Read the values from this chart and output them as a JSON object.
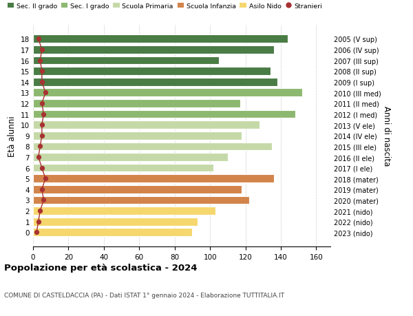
{
  "ages": [
    0,
    1,
    2,
    3,
    4,
    5,
    6,
    7,
    8,
    9,
    10,
    11,
    12,
    13,
    14,
    15,
    16,
    17,
    18
  ],
  "values": [
    90,
    93,
    103,
    122,
    118,
    136,
    102,
    110,
    135,
    118,
    128,
    148,
    117,
    152,
    138,
    134,
    105,
    136,
    144
  ],
  "stranieri": [
    2,
    3,
    4,
    6,
    5,
    7,
    5,
    3,
    4,
    5,
    5,
    6,
    5,
    7,
    5,
    5,
    4,
    5,
    3
  ],
  "right_labels": [
    "2023 (nido)",
    "2022 (nido)",
    "2021 (nido)",
    "2020 (mater)",
    "2019 (mater)",
    "2018 (mater)",
    "2017 (I ele)",
    "2016 (II ele)",
    "2015 (III ele)",
    "2014 (IV ele)",
    "2013 (V ele)",
    "2012 (I med)",
    "2011 (II med)",
    "2010 (III med)",
    "2009 (I sup)",
    "2008 (II sup)",
    "2007 (III sup)",
    "2006 (IV sup)",
    "2005 (V sup)"
  ],
  "bar_colors": [
    "#f5d76e",
    "#f5d76e",
    "#f5d76e",
    "#d2844a",
    "#d2844a",
    "#d2844a",
    "#c5d9a8",
    "#c5d9a8",
    "#c5d9a8",
    "#c5d9a8",
    "#c5d9a8",
    "#8db870",
    "#8db870",
    "#8db870",
    "#4a7c45",
    "#4a7c45",
    "#4a7c45",
    "#4a7c45",
    "#4a7c45"
  ],
  "legend_labels": [
    "Sec. II grado",
    "Sec. I grado",
    "Scuola Primaria",
    "Scuola Infanzia",
    "Asilo Nido",
    "Stranieri"
  ],
  "legend_colors": [
    "#4a7c45",
    "#8db870",
    "#c5d9a8",
    "#d2844a",
    "#f5d76e",
    "#a83232"
  ],
  "stranieri_color": "#a83232",
  "title": "Popolazione per età scolastica - 2024",
  "subtitle": "COMUNE DI CASTELDACCIA (PA) - Dati ISTAT 1° gennaio 2024 - Elaborazione TUTTITALIA.IT",
  "ylabel": "Età alunni",
  "ylabel_right": "Anni di nascita",
  "xlim": [
    0,
    168
  ],
  "xticks": [
    0,
    20,
    40,
    60,
    80,
    100,
    120,
    140,
    160
  ],
  "background_color": "#ffffff",
  "grid_color": "#cccccc"
}
